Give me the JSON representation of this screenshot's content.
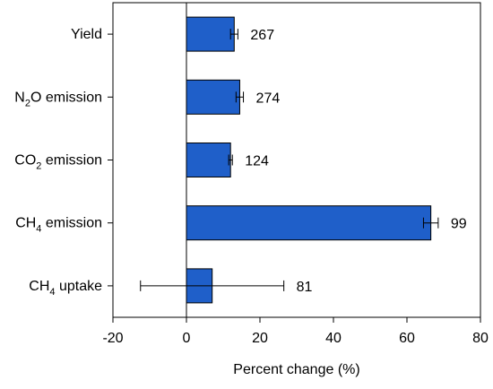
{
  "chart_data": {
    "type": "bar",
    "orientation": "horizontal",
    "categories": [
      {
        "label": "Yield",
        "base": "Yield",
        "sub": "",
        "rest": ""
      },
      {
        "label": "N₂O emission",
        "base": "N",
        "sub": "2",
        "rest": "O emission"
      },
      {
        "label": "CO₂ emission",
        "base": "CO",
        "sub": "2",
        "rest": " emission"
      },
      {
        "label": "CH₄ emission",
        "base": "CH",
        "sub": "4",
        "rest": " emission"
      },
      {
        "label": "CH₄ uptake",
        "base": "CH",
        "sub": "4",
        "rest": " uptake"
      }
    ],
    "values": [
      13,
      14.5,
      12,
      66.5,
      7
    ],
    "error_low": [
      12,
      13.5,
      11.5,
      64.5,
      -12.5
    ],
    "error_high": [
      14,
      15.5,
      12.5,
      68.5,
      26.5
    ],
    "sample_sizes": [
      "267",
      "274",
      "124",
      "99",
      "81"
    ],
    "xlabel": "Percent change (%)",
    "xlim": [
      -20,
      80
    ],
    "xticks": [
      -20,
      0,
      20,
      40,
      60,
      80
    ],
    "grid": false,
    "reference_line_x": 0,
    "bar_color": "#1f5fc9"
  }
}
